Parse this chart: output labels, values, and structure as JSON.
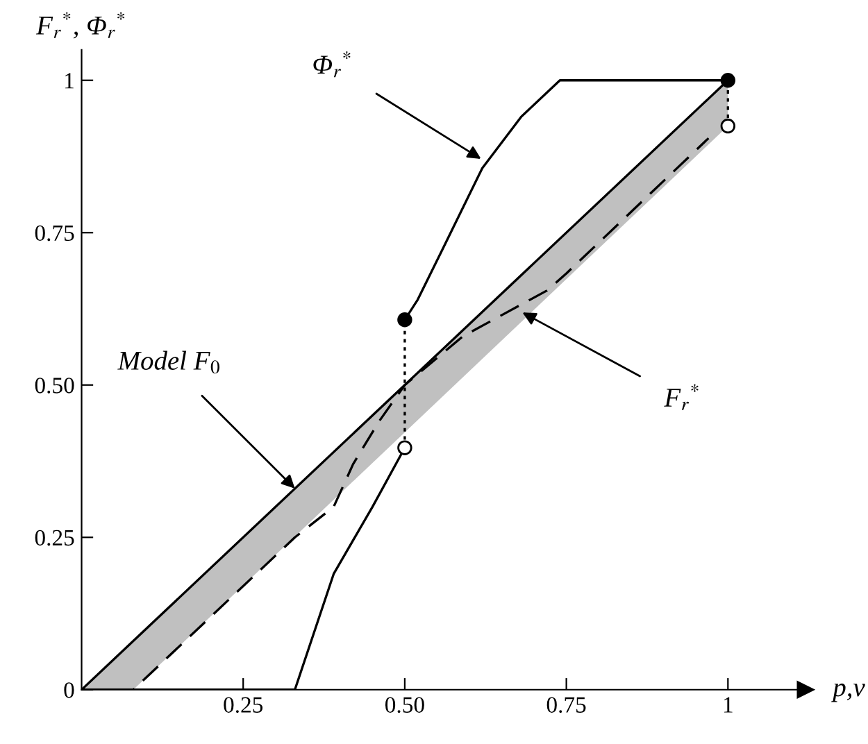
{
  "chart_data": {
    "type": "line",
    "xlabel": "p,v",
    "ylabel": "F$_{r}$$^{*}$, Φ$_{r}$$^{*}$",
    "xlim": [
      0,
      1.12
    ],
    "ylim": [
      0,
      1.05
    ],
    "xticks": [
      {
        "value": 0.25,
        "label": "0.25"
      },
      {
        "value": 0.5,
        "label": "0.50"
      },
      {
        "value": 0.75,
        "label": "0.75"
      },
      1
    ],
    "yticks": [
      0,
      {
        "value": 0.25,
        "label": "0.25"
      },
      {
        "value": 0.5,
        "label": "0.50"
      },
      {
        "value": 0.75,
        "label": "0.75"
      },
      1
    ],
    "grid": false,
    "series": [
      {
        "color": "#000000",
        "line_style": "solid",
        "x": [
          0,
          0.08,
          1
        ],
        "values": [
          0,
          0.08,
          1
        ],
        "lower": [
          0,
          0,
          0.925
        ],
        "upper": [
          0,
          0.08,
          1
        ]
      },
      {
        "color": "#000000",
        "line_style": "dashed",
        "x": [
          0,
          0.08,
          0.33,
          0.39,
          0.42,
          0.46,
          0.5,
          0.59,
          0.72,
          0.75,
          0.97
        ],
        "values": [
          0,
          0,
          0.25,
          0.3,
          0.37,
          0.44,
          0.5,
          0.58,
          0.655,
          0.683,
          0.905
        ]
      },
      {
        "color": "#000000",
        "line_style": "solid",
        "x": [
          0,
          0.33,
          0.39,
          0.45,
          0.5
        ],
        "values": [
          0,
          0,
          0.19,
          0.3,
          0.397
        ]
      },
      {
        "color": "#000000",
        "line_style": "solid",
        "x": [
          0.5,
          0.52,
          0.56,
          0.62,
          0.68,
          0.74,
          1
        ],
        "values": [
          0.607,
          0.64,
          0.726,
          0.856,
          0.94,
          1,
          1
        ]
      },
      {
        "color": "#000000",
        "line_style": "dotted",
        "x": [
          0.5,
          0.5
        ],
        "values": [
          0.397,
          0.607
        ]
      },
      {
        "color": "#000000",
        "line_style": "dotted",
        "x": [
          1,
          1
        ],
        "values": [
          0.925,
          1
        ]
      },
      {
        "type": "scatter",
        "color": "#000000",
        "marker": "circle",
        "x": [
          0.5,
          1
        ],
        "values": [
          0.607,
          1
        ]
      },
      {
        "type": "scatter",
        "color": "#ffffff",
        "marker": "circle",
        "x": [
          0.5,
          1
        ],
        "values": [
          0.397,
          0.925
        ]
      }
    ],
    "annotations": [
      {
        "text": "Φ$_{r}$$^{*}$",
        "x": 0.618,
        "y": 0.871
      },
      {
        "text": "F$_{r}$$^{*}$",
        "x": 0.682,
        "y": 0.619
      },
      {
        "text": "Model F$_{0}$",
        "x": 0.33,
        "y": 0.33
      }
    ]
  }
}
